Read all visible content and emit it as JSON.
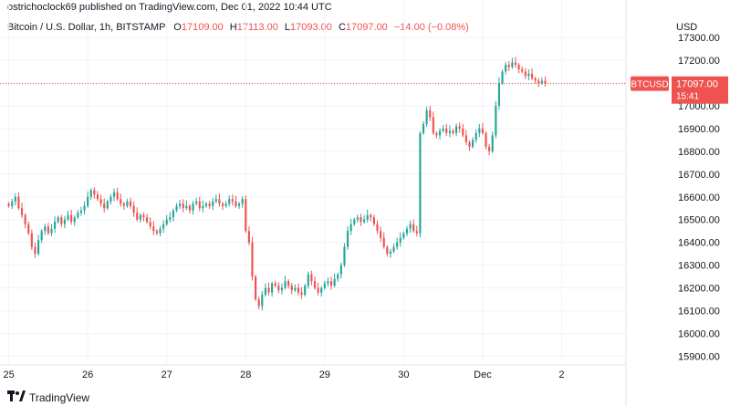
{
  "header": {
    "published": "ostrichoclock69 published on TradingView.com, Dec 01, 2022 10:44 UTC",
    "currency": "USD"
  },
  "legend": {
    "symbol": "Bitcoin / U.S. Dollar, 1h, BITSTAMP",
    "o_label": "O",
    "o_value": "17109.00",
    "h_label": "H",
    "h_value": "17113.00",
    "l_label": "L",
    "l_value": "17093.00",
    "c_label": "C",
    "c_value": "17097.00",
    "change": "−14.00 (−0.08%)"
  },
  "price_tag": {
    "symbol": "BTCUSD",
    "price": "17097.00",
    "countdown": "15:41"
  },
  "footer": {
    "brand": "TradingView"
  },
  "colors": {
    "up": "#26a69a",
    "down": "#ef5350",
    "grid": "#f0f3fa",
    "price_line": "#ef5350"
  },
  "chart_data": {
    "type": "candlestick",
    "interval": "1h",
    "y_axis": {
      "ticks": [
        15900,
        16000,
        16100,
        16200,
        16300,
        16400,
        16500,
        16600,
        16700,
        16800,
        16900,
        17000,
        17100,
        17200,
        17300
      ],
      "tick_labels": [
        "15900.00",
        "16000.00",
        "16100.00",
        "16200.00",
        "16300.00",
        "16400.00",
        "16500.00",
        "16600.00",
        "16700.00",
        "16800.00",
        "16900.00",
        "17000.00",
        "17100.00",
        "17200.00",
        "17300.00"
      ],
      "range": [
        15870,
        17320
      ]
    },
    "x_axis": {
      "labels": [
        "25",
        "26",
        "27",
        "28",
        "29",
        "30",
        "Dec",
        "2"
      ],
      "positions": [
        0,
        24,
        48,
        72,
        96,
        120,
        144,
        168
      ],
      "range": [
        -1,
        187
      ]
    },
    "last_price": 17097,
    "closes": [
      16560,
      16580,
      16600,
      16550,
      16520,
      16480,
      16440,
      16380,
      16350,
      16410,
      16450,
      16470,
      16440,
      16460,
      16490,
      16510,
      16480,
      16500,
      16520,
      16490,
      16510,
      16530,
      16540,
      16560,
      16600,
      16630,
      16610,
      16590,
      16570,
      16550,
      16580,
      16600,
      16620,
      16590,
      16570,
      16560,
      16580,
      16560,
      16530,
      16500,
      16520,
      16510,
      16490,
      16470,
      16450,
      16440,
      16460,
      16480,
      16500,
      16510,
      16540,
      16560,
      16570,
      16550,
      16560,
      16540,
      16570,
      16580,
      16550,
      16560,
      16570,
      16560,
      16580,
      16590,
      16570,
      16560,
      16570,
      16590,
      16580,
      16560,
      16570,
      16590,
      16450,
      16400,
      16250,
      16150,
      16120,
      16170,
      16200,
      16180,
      16220,
      16210,
      16190,
      16200,
      16230,
      16210,
      16190,
      16200,
      16180,
      16170,
      16210,
      16260,
      16230,
      16200,
      16180,
      16200,
      16220,
      16230,
      16210,
      16240,
      16260,
      16300,
      16380,
      16450,
      16480,
      16500,
      16510,
      16490,
      16500,
      16520,
      16510,
      16480,
      16450,
      16420,
      16380,
      16350,
      16360,
      16380,
      16400,
      16420,
      16440,
      16460,
      16480,
      16450,
      16440,
      16880,
      16920,
      16980,
      16950,
      16880,
      16870,
      16890,
      16900,
      16880,
      16890,
      16880,
      16910,
      16900,
      16870,
      16840,
      16820,
      16850,
      16880,
      16900,
      16880,
      16820,
      16800,
      16870,
      17000,
      17100,
      17150,
      17180,
      17170,
      17190,
      17180,
      17160,
      17150,
      17130,
      17140,
      17120,
      17110,
      17100,
      17109,
      17097
    ],
    "opens": [
      16570,
      16560,
      16580,
      16600,
      16550,
      16520,
      16480,
      16440,
      16380,
      16350,
      16410,
      16450,
      16470,
      16440,
      16460,
      16490,
      16510,
      16480,
      16500,
      16520,
      16490,
      16510,
      16530,
      16540,
      16560,
      16600,
      16630,
      16610,
      16590,
      16570,
      16550,
      16580,
      16600,
      16620,
      16590,
      16570,
      16560,
      16580,
      16560,
      16530,
      16500,
      16520,
      16510,
      16490,
      16470,
      16450,
      16440,
      16460,
      16480,
      16500,
      16510,
      16540,
      16560,
      16570,
      16550,
      16560,
      16540,
      16570,
      16580,
      16550,
      16560,
      16570,
      16560,
      16580,
      16590,
      16570,
      16560,
      16570,
      16590,
      16580,
      16560,
      16570,
      16590,
      16450,
      16400,
      16250,
      16150,
      16120,
      16170,
      16200,
      16180,
      16220,
      16210,
      16190,
      16200,
      16230,
      16210,
      16190,
      16200,
      16180,
      16170,
      16210,
      16260,
      16230,
      16200,
      16180,
      16200,
      16220,
      16230,
      16210,
      16240,
      16260,
      16300,
      16380,
      16450,
      16480,
      16500,
      16510,
      16490,
      16500,
      16520,
      16510,
      16480,
      16450,
      16420,
      16380,
      16350,
      16360,
      16380,
      16400,
      16420,
      16440,
      16460,
      16480,
      16450,
      16440,
      16880,
      16920,
      16980,
      16950,
      16880,
      16870,
      16890,
      16900,
      16880,
      16890,
      16880,
      16910,
      16900,
      16870,
      16840,
      16820,
      16850,
      16880,
      16900,
      16880,
      16820,
      16800,
      16870,
      17000,
      17100,
      17150,
      17180,
      17170,
      17190,
      17180,
      17160,
      17150,
      17130,
      17140,
      17120,
      17110,
      17100,
      17109
    ]
  }
}
